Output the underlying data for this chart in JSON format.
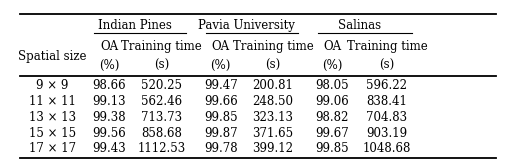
{
  "spatial_sizes": [
    "9 × 9",
    "11 × 11",
    "13 × 13",
    "15 × 15",
    "17 × 17"
  ],
  "indian_pines_oa": [
    "98.66",
    "99.13",
    "99.38",
    "99.56",
    "99.43"
  ],
  "indian_pines_tt": [
    "520.25",
    "562.46",
    "713.73",
    "858.68",
    "1112.53"
  ],
  "pavia_oa": [
    "99.47",
    "99.66",
    "99.85",
    "99.87",
    "99.78"
  ],
  "pavia_tt": [
    "200.81",
    "248.50",
    "323.13",
    "371.65",
    "399.12"
  ],
  "salinas_oa": [
    "98.05",
    "99.06",
    "98.82",
    "99.67",
    "99.85"
  ],
  "salinas_tt": [
    "596.22",
    "838.41",
    "704.83",
    "903.19",
    "1048.68"
  ],
  "group_headers": [
    "Indian Pines",
    "Pavia University",
    "Salinas"
  ],
  "col_headers_line1": [
    "OA",
    "Training time",
    "OA",
    "Training time",
    "OA",
    "Training time"
  ],
  "col_headers_line2": [
    "(%)",
    "(s)",
    "(%)",
    "(s)",
    "(%)",
    "(s)"
  ],
  "row_header": "Spatial size",
  "bg_color": "#ffffff",
  "text_color": "#000000",
  "font_size": 8.5
}
